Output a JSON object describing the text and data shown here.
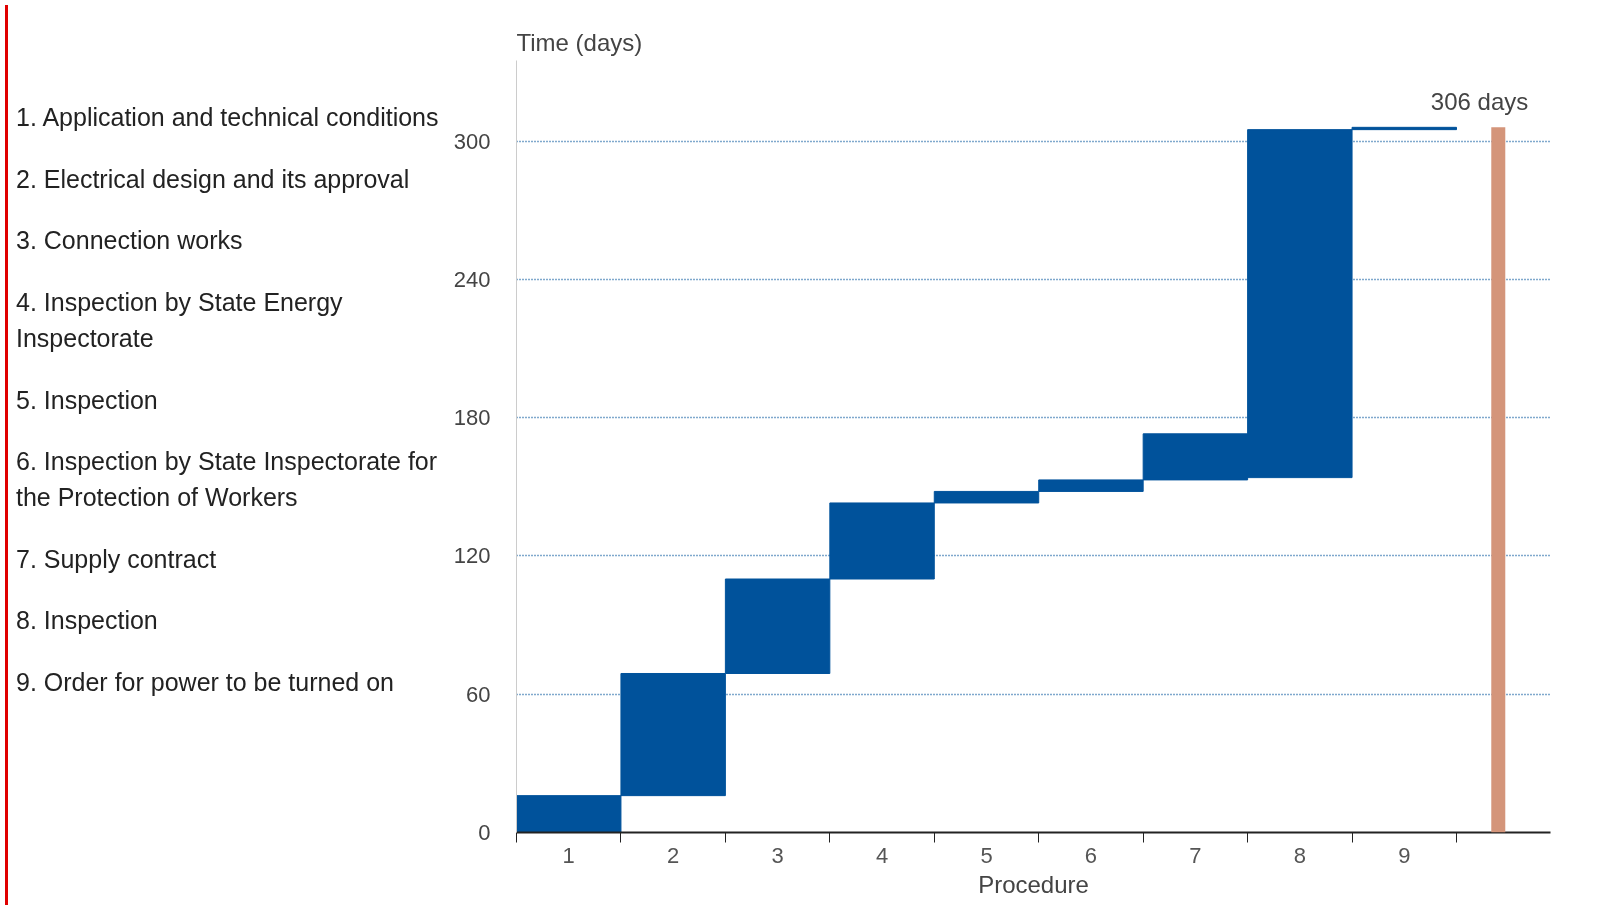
{
  "chart_data": {
    "type": "bar",
    "ylabel": "Time (days)",
    "xlabel": "Procedure",
    "categories": [
      "1",
      "2",
      "3",
      "4",
      "5",
      "6",
      "7",
      "8",
      "9"
    ],
    "values": [
      16,
      53,
      41,
      33,
      5,
      5,
      20,
      151,
      1
    ],
    "base": [
      0,
      16,
      69,
      110,
      143,
      148,
      153,
      154,
      305
    ],
    "color": "#00529b",
    "ylim": [
      0,
      335
    ],
    "yticks": [
      0,
      60,
      120,
      180,
      240,
      300
    ],
    "grid": "y",
    "annotations": [
      "306 days",
      "1. Application and technical conditions",
      "2. Electrical design and its approval",
      "3. Connection works",
      "4. Inspection by State Energy Inspectorate",
      "5. Inspection",
      "6. Inspection by State Inspectorate for the Protection of Workers",
      "7. Supply contract",
      "8. Inspection",
      "9. Order for power to be turned on"
    ]
  }
}
